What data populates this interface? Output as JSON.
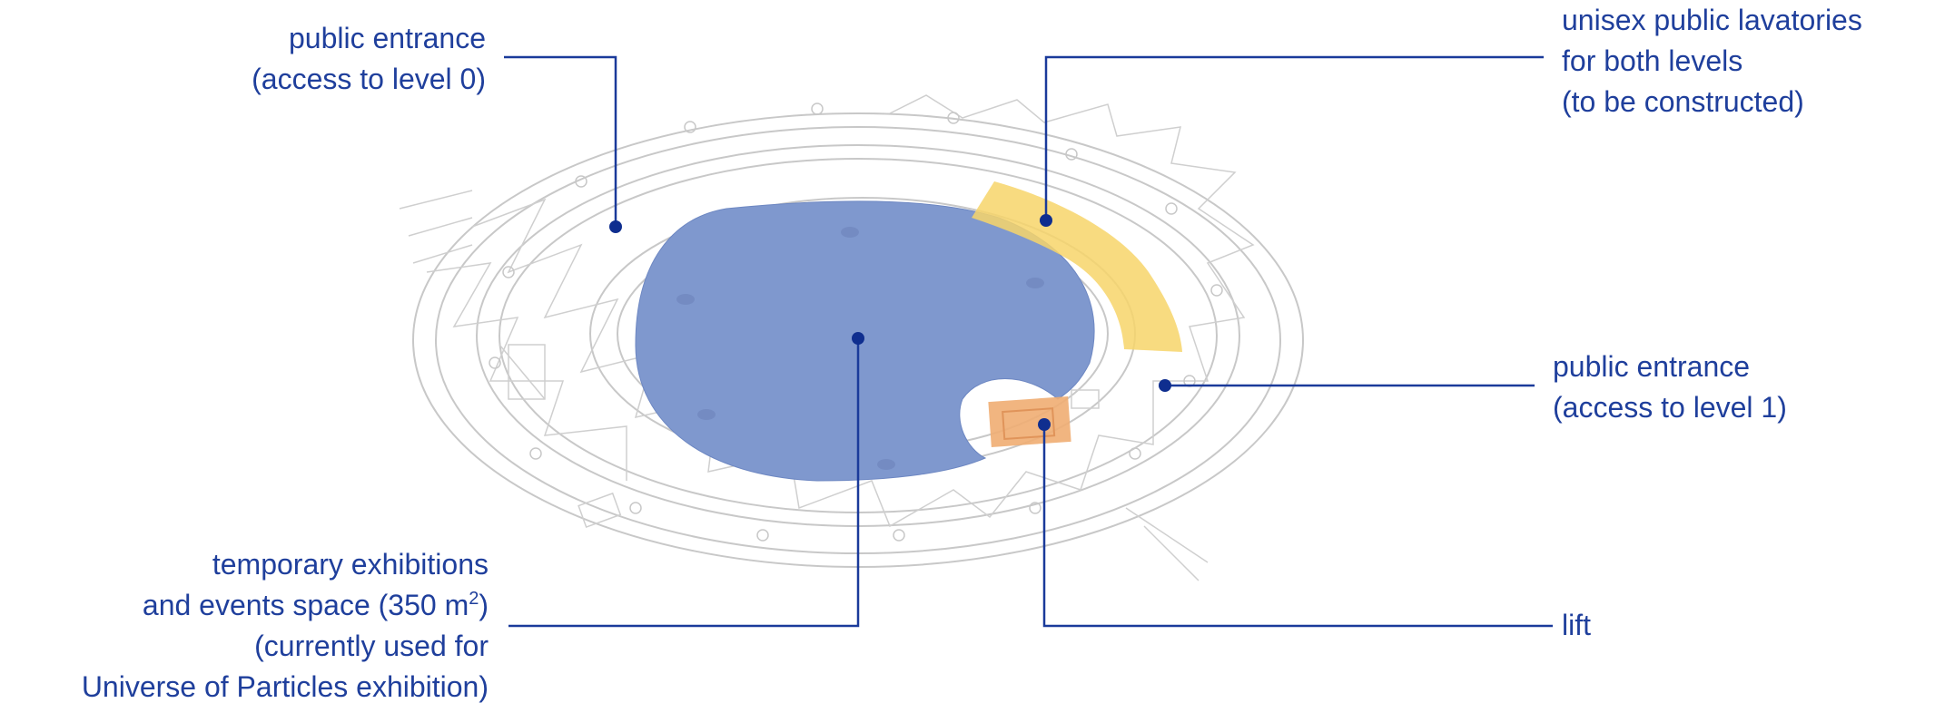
{
  "labels": {
    "entrance_level0": {
      "line1": "public entrance",
      "line2": "(access to level 0)"
    },
    "lavatories": {
      "line1": "unisex public lavatories",
      "line2": "for both levels",
      "line3": "(to be constructed)"
    },
    "entrance_level1": {
      "line1": "public entrance",
      "line2": "(access to level 1)"
    },
    "exhibition": {
      "line1": "temporary exhibitions",
      "line2_pre": "and events space (350 m",
      "line2_sup": "2",
      "line2_post": ")",
      "line3": "(currently used for",
      "line4": "Universe of Particles exhibition)"
    },
    "lift": "lift"
  },
  "colors": {
    "label_text": "#1f3f9c",
    "leader_line": "#1a3a9a",
    "exhibition_area": "#7f98ce",
    "lavatory_area": "#f7d56a",
    "lift_area": "#f0ad72",
    "plan_linework": "#c8c8c8"
  }
}
